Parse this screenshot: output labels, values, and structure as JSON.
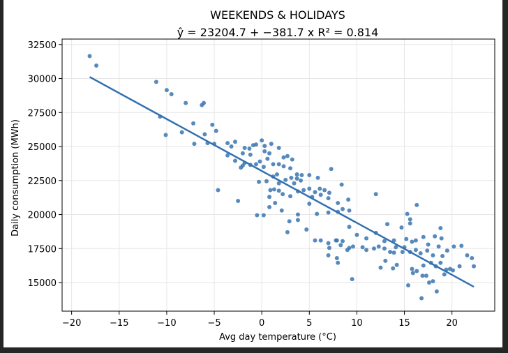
{
  "colors": {
    "background": "#ffffff",
    "frame": "#262626",
    "points": "#3a76b0",
    "fit_line": "#3370b0",
    "grid": "#e6e6e6"
  },
  "chart_data": {
    "type": "scatter",
    "title": "WEEKENDS & HOLIDAYS",
    "subtitle": "ŷ = 23204.7 + −381.7 x   R² = 0.814",
    "xlabel": "Avg day temperature (°C)",
    "ylabel": "Daily consumption (MWh)",
    "xlim": [
      -21,
      24.5
    ],
    "ylim": [
      12900,
      32900
    ],
    "xticks": [
      -20,
      -15,
      -10,
      -5,
      0,
      5,
      10,
      15,
      20
    ],
    "xtick_labels": [
      "−20",
      "−15",
      "−10",
      "−5",
      "0",
      "5",
      "10",
      "15",
      "20"
    ],
    "yticks": [
      15000,
      17500,
      20000,
      22500,
      25000,
      27500,
      30000,
      32500
    ],
    "ytick_labels": [
      "15000",
      "17500",
      "20000",
      "22500",
      "25000",
      "27500",
      "30000",
      "32500"
    ],
    "grid": true,
    "fit_line": {
      "intercept": 23204.7,
      "slope": -381.7,
      "x_start": -18.1,
      "x_end": 22.3
    },
    "points": [
      [
        -18.1,
        31650
      ],
      [
        -17.4,
        30950
      ],
      [
        -11.1,
        29750
      ],
      [
        -10.0,
        29150
      ],
      [
        -9.5,
        28850
      ],
      [
        -8.0,
        28200
      ],
      [
        -6.3,
        28050
      ],
      [
        -6.1,
        28200
      ],
      [
        -10.7,
        27200
      ],
      [
        -5.2,
        26600
      ],
      [
        -8.4,
        26050
      ],
      [
        -7.2,
        26700
      ],
      [
        -10.1,
        25850
      ],
      [
        -6.0,
        25900
      ],
      [
        -4.8,
        26150
      ],
      [
        -7.1,
        25200
      ],
      [
        -5.7,
        25250
      ],
      [
        -5.0,
        25200
      ],
      [
        -3.6,
        25250
      ],
      [
        -2.8,
        25350
      ],
      [
        -3.2,
        25000
      ],
      [
        -1.8,
        24900
      ],
      [
        -1.3,
        24850
      ],
      [
        -0.9,
        25100
      ],
      [
        -0.6,
        25150
      ],
      [
        0.0,
        25450
      ],
      [
        0.3,
        25050
      ],
      [
        1.0,
        25200
      ],
      [
        -2.0,
        24500
      ],
      [
        -3.6,
        24350
      ],
      [
        -1.2,
        24400
      ],
      [
        0.3,
        24650
      ],
      [
        0.8,
        24500
      ],
      [
        1.8,
        24900
      ],
      [
        2.3,
        24200
      ],
      [
        2.7,
        24300
      ],
      [
        3.2,
        24050
      ],
      [
        -2.8,
        23950
      ],
      [
        -1.8,
        23800
      ],
      [
        -1.2,
        23650
      ],
      [
        -0.6,
        23700
      ],
      [
        -0.2,
        23900
      ],
      [
        0.2,
        23500
      ],
      [
        0.6,
        24100
      ],
      [
        1.2,
        23700
      ],
      [
        1.8,
        23700
      ],
      [
        2.3,
        23550
      ],
      [
        3.0,
        23400
      ],
      [
        3.7,
        22950
      ],
      [
        4.2,
        22900
      ],
      [
        -2.2,
        23450
      ],
      [
        -2.0,
        23600
      ],
      [
        1.6,
        22950
      ],
      [
        1.2,
        22800
      ],
      [
        0.5,
        22450
      ],
      [
        -0.3,
        22400
      ],
      [
        1.8,
        22300
      ],
      [
        2.5,
        22550
      ],
      [
        3.1,
        22700
      ],
      [
        3.4,
        22300
      ],
      [
        3.7,
        22650
      ],
      [
        4.1,
        22500
      ],
      [
        5.0,
        22900
      ],
      [
        5.9,
        22700
      ],
      [
        7.3,
        23350
      ],
      [
        8.4,
        22200
      ],
      [
        0.9,
        21800
      ],
      [
        1.3,
        21850
      ],
      [
        1.8,
        21750
      ],
      [
        2.2,
        21500
      ],
      [
        3.0,
        21350
      ],
      [
        3.8,
        21700
      ],
      [
        4.4,
        21800
      ],
      [
        5.0,
        21900
      ],
      [
        5.6,
        21650
      ],
      [
        6.1,
        21900
      ],
      [
        6.6,
        21800
      ],
      [
        7.1,
        21600
      ],
      [
        5.3,
        21300
      ],
      [
        6.2,
        21450
      ],
      [
        7.0,
        21200
      ],
      [
        8.0,
        20850
      ],
      [
        9.1,
        21100
      ],
      [
        12.0,
        21500
      ],
      [
        -4.6,
        21800
      ],
      [
        -2.5,
        21000
      ],
      [
        0.8,
        21300
      ],
      [
        1.4,
        20850
      ],
      [
        0.8,
        20550
      ],
      [
        2.1,
        20300
      ],
      [
        3.8,
        20000
      ],
      [
        5.0,
        20800
      ],
      [
        5.8,
        20050
      ],
      [
        7.0,
        20150
      ],
      [
        8.0,
        20200
      ],
      [
        8.5,
        20400
      ],
      [
        9.2,
        20300
      ],
      [
        -0.5,
        19950
      ],
      [
        0.2,
        19950
      ],
      [
        2.9,
        19500
      ],
      [
        3.8,
        19600
      ],
      [
        4.7,
        18900
      ],
      [
        6.2,
        18100
      ],
      [
        7.8,
        18100
      ],
      [
        8.5,
        18050
      ],
      [
        9.2,
        19100
      ],
      [
        10.0,
        18500
      ],
      [
        11.0,
        18250
      ],
      [
        12.0,
        18650
      ],
      [
        12.9,
        18050
      ],
      [
        13.2,
        19300
      ],
      [
        13.9,
        18100
      ],
      [
        14.7,
        19050
      ],
      [
        2.7,
        18700
      ],
      [
        5.6,
        18100
      ],
      [
        7.0,
        17900
      ],
      [
        7.1,
        17550
      ],
      [
        7.9,
        18100
      ],
      [
        8.3,
        17750
      ],
      [
        9.0,
        17400
      ],
      [
        9.2,
        17550
      ],
      [
        9.6,
        17650
      ],
      [
        10.6,
        17600
      ],
      [
        11.0,
        17400
      ],
      [
        11.8,
        17500
      ],
      [
        12.3,
        17650
      ],
      [
        12.9,
        17500
      ],
      [
        13.5,
        17250
      ],
      [
        13.9,
        17200
      ],
      [
        14.1,
        17600
      ],
      [
        14.8,
        17250
      ],
      [
        15.0,
        17600
      ],
      [
        7.0,
        17000
      ],
      [
        7.9,
        16800
      ],
      [
        8.0,
        16450
      ],
      [
        9.5,
        15250
      ],
      [
        12.5,
        16100
      ],
      [
        13.0,
        16600
      ],
      [
        13.8,
        16050
      ],
      [
        14.2,
        16300
      ],
      [
        15.3,
        20050
      ],
      [
        15.6,
        19650
      ],
      [
        15.6,
        19350
      ],
      [
        16.3,
        20700
      ],
      [
        15.2,
        18200
      ],
      [
        15.8,
        18000
      ],
      [
        16.2,
        18100
      ],
      [
        17.0,
        18350
      ],
      [
        17.5,
        17800
      ],
      [
        18.2,
        18400
      ],
      [
        18.8,
        19000
      ],
      [
        18.9,
        18250
      ],
      [
        15.6,
        17250
      ],
      [
        16.2,
        17400
      ],
      [
        16.7,
        17150
      ],
      [
        17.4,
        17350
      ],
      [
        18.0,
        17000
      ],
      [
        18.6,
        17650
      ],
      [
        19.0,
        16950
      ],
      [
        19.5,
        17350
      ],
      [
        20.2,
        17650
      ],
      [
        21.0,
        17700
      ],
      [
        21.6,
        17000
      ],
      [
        22.1,
        16800
      ],
      [
        15.8,
        16000
      ],
      [
        16.3,
        15850
      ],
      [
        17.0,
        16250
      ],
      [
        17.8,
        16450
      ],
      [
        18.3,
        16200
      ],
      [
        18.8,
        16450
      ],
      [
        19.4,
        15950
      ],
      [
        20.1,
        15900
      ],
      [
        20.8,
        16200
      ],
      [
        22.3,
        16200
      ],
      [
        15.4,
        14800
      ],
      [
        16.8,
        13850
      ],
      [
        17.3,
        15500
      ],
      [
        17.6,
        15000
      ],
      [
        18.0,
        15100
      ],
      [
        18.4,
        14350
      ],
      [
        19.2,
        15600
      ],
      [
        19.8,
        16000
      ],
      [
        15.9,
        15700
      ],
      [
        16.9,
        15500
      ]
    ]
  }
}
